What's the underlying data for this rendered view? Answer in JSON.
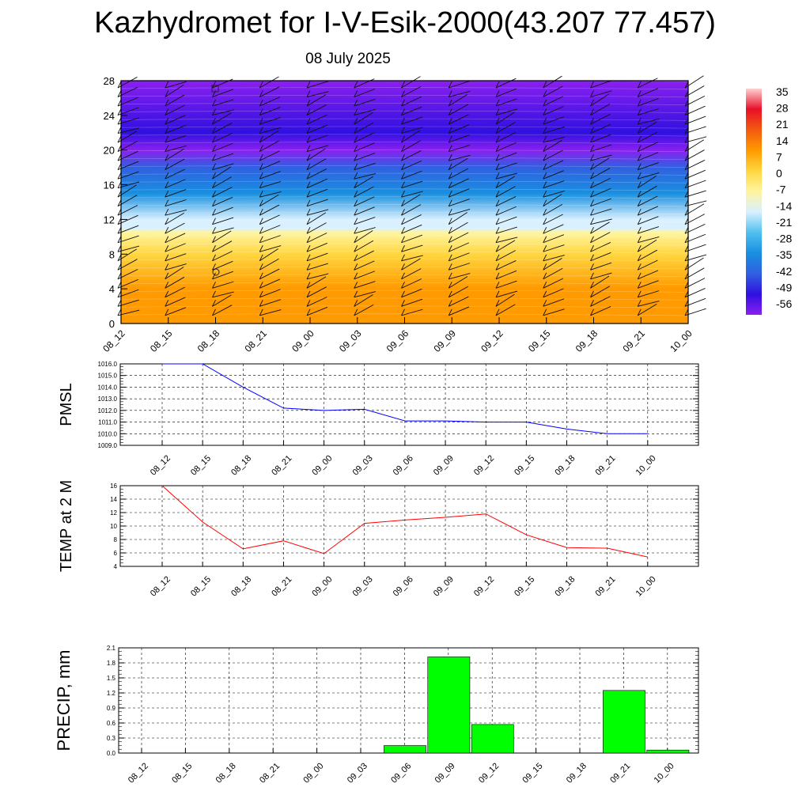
{
  "title": "Kazhydromet for I-V-Esik-2000(43.207 77.457)",
  "subtitle": "08 July 2025",
  "time_labels": [
    "08_12",
    "08_15",
    "08_18",
    "08_21",
    "09_00",
    "09_03",
    "09_06",
    "09_09",
    "09_12",
    "09_15",
    "09_18",
    "09_21",
    "10_00"
  ],
  "chart_data": [
    {
      "type": "heatmap",
      "title": "",
      "ylabel": "",
      "y_ticks": [
        0,
        4,
        8,
        12,
        16,
        20,
        24,
        28
      ],
      "ylim": [
        0,
        28
      ],
      "colorbar": {
        "labels": [
          "35",
          "28",
          "21",
          "14",
          "7",
          "0",
          "-7",
          "-14",
          "-21",
          "-28",
          "-35",
          "-42",
          "-49",
          "-56"
        ],
        "stops": [
          "#ffd0d0",
          "#e8102a",
          "#f25a10",
          "#ff9a00",
          "#ffd640",
          "#fff5a0",
          "#d8f0ff",
          "#50c0f0",
          "#1890e0",
          "#3060e0",
          "#3010e0",
          "#8a20f0"
        ]
      },
      "temperature_profile": [
        {
          "height": 0,
          "temp": 14
        },
        {
          "height": 4,
          "temp": 7
        },
        {
          "height": 8,
          "temp": 1
        },
        {
          "height": 10.5,
          "temp": -6
        },
        {
          "height": 11,
          "temp": -12
        },
        {
          "height": 12,
          "temp": -18
        },
        {
          "height": 15,
          "temp": -28
        },
        {
          "height": 18,
          "temp": -42
        },
        {
          "height": 20,
          "temp": -52
        },
        {
          "height": 22,
          "temp": -48
        },
        {
          "height": 28,
          "temp": -57
        }
      ]
    },
    {
      "type": "line",
      "ylabel": "PMSL",
      "ylim": [
        1009,
        1016
      ],
      "y_ticks": [
        "1009.0",
        "1010.0",
        "1011.0",
        "1012.0",
        "1013.0",
        "1014.0",
        "1015.0",
        "1016.0"
      ],
      "series": [
        {
          "color": "#0000ff",
          "values": [
            1016.0,
            1016.0,
            1014.0,
            1012.2,
            1012.0,
            1012.1,
            1011.1,
            1011.1,
            1011.0,
            1011.0,
            1010.4,
            1010.0,
            1010.0
          ]
        }
      ]
    },
    {
      "type": "line",
      "ylabel": "TEMP at 2 M",
      "ylim": [
        4,
        16
      ],
      "y_ticks": [
        "4",
        "6",
        "8",
        "10",
        "12",
        "14",
        "16"
      ],
      "series": [
        {
          "color": "#ff0000",
          "values": [
            16.0,
            10.6,
            6.6,
            7.8,
            5.9,
            10.4,
            10.9,
            11.3,
            11.8,
            8.7,
            6.8,
            6.7,
            5.4
          ]
        }
      ]
    },
    {
      "type": "bar",
      "ylabel": "PRECIP, mm",
      "ylim": [
        0,
        2.1
      ],
      "y_ticks": [
        "0.0",
        "0.3",
        "0.6",
        "0.9",
        "1.2",
        "1.5",
        "1.8",
        "2.1"
      ],
      "color": "#00ff00",
      "values": [
        0,
        0,
        0,
        0,
        0,
        0,
        0.15,
        1.92,
        0.57,
        0,
        0,
        1.25,
        0.06
      ]
    }
  ]
}
